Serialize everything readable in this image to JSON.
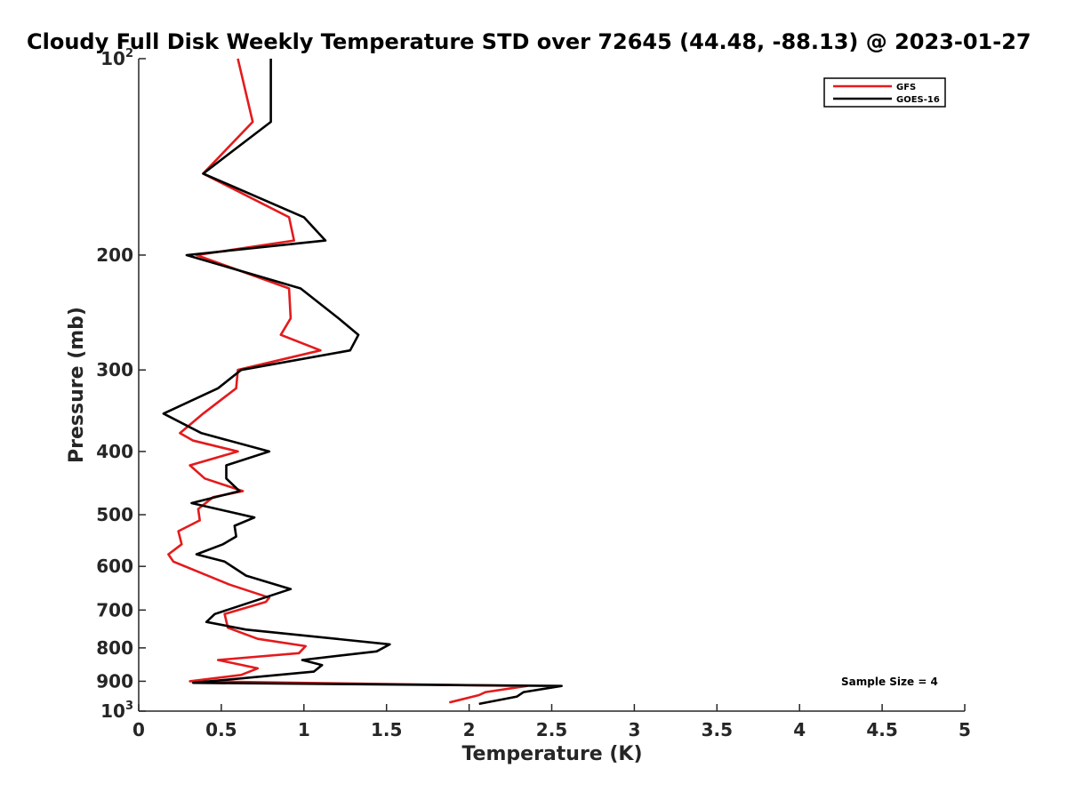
{
  "chart_data": {
    "type": "line",
    "title": "Cloudy Full Disk Weekly Temperature STD over 72645 (44.48, -88.13) @ 2023-01-27",
    "xlabel": "Temperature (K)",
    "ylabel": "Pressure (mb)",
    "xlim": [
      0,
      5
    ],
    "ylim": [
      100,
      1000
    ],
    "y_scale": "log",
    "y_reversed": true,
    "x_ticks": [
      "0",
      "0.5",
      "1",
      "1.5",
      "2",
      "2.5",
      "3",
      "3.5",
      "4",
      "4.5",
      "5"
    ],
    "y_ticks": [
      {
        "value": 100,
        "base": "10",
        "exp": "2"
      },
      {
        "value": 200,
        "label": "200"
      },
      {
        "value": 300,
        "label": "300"
      },
      {
        "value": 400,
        "label": "400"
      },
      {
        "value": 500,
        "label": "500"
      },
      {
        "value": 600,
        "label": "600"
      },
      {
        "value": 700,
        "label": "700"
      },
      {
        "value": 800,
        "label": "800"
      },
      {
        "value": 900,
        "label": "900"
      },
      {
        "value": 1000,
        "base": "10",
        "exp": "3"
      }
    ],
    "grid": false,
    "legend_position": "top-right",
    "annotation": "Sample Size = 4",
    "series": [
      {
        "name": "GFS",
        "color": "#e41a1c",
        "points": [
          [
            0.6,
            100
          ],
          [
            0.69,
            125
          ],
          [
            0.39,
            150
          ],
          [
            0.91,
            175
          ],
          [
            0.94,
            190
          ],
          [
            0.35,
            200
          ],
          [
            0.91,
            225
          ],
          [
            0.92,
            250
          ],
          [
            0.86,
            265
          ],
          [
            1.1,
            280
          ],
          [
            0.6,
            300
          ],
          [
            0.59,
            320
          ],
          [
            0.39,
            350
          ],
          [
            0.25,
            375
          ],
          [
            0.33,
            385
          ],
          [
            0.6,
            400
          ],
          [
            0.31,
            420
          ],
          [
            0.4,
            440
          ],
          [
            0.63,
            460
          ],
          [
            0.45,
            470
          ],
          [
            0.36,
            490
          ],
          [
            0.37,
            510
          ],
          [
            0.24,
            530
          ],
          [
            0.26,
            555
          ],
          [
            0.18,
            575
          ],
          [
            0.21,
            590
          ],
          [
            0.55,
            640
          ],
          [
            0.79,
            670
          ],
          [
            0.77,
            680
          ],
          [
            0.52,
            710
          ],
          [
            0.54,
            745
          ],
          [
            0.72,
            775
          ],
          [
            1.01,
            795
          ],
          [
            0.97,
            815
          ],
          [
            0.48,
            835
          ],
          [
            0.72,
            860
          ],
          [
            0.62,
            880
          ],
          [
            0.31,
            900
          ],
          [
            2.35,
            915
          ],
          [
            2.1,
            935
          ],
          [
            2.06,
            945
          ],
          [
            1.88,
            970
          ]
        ]
      },
      {
        "name": "GOES-16",
        "color": "#000000",
        "points": [
          [
            0.8,
            100
          ],
          [
            0.8,
            125
          ],
          [
            0.39,
            150
          ],
          [
            1.0,
            175
          ],
          [
            1.13,
            190
          ],
          [
            0.29,
            200
          ],
          [
            0.98,
            225
          ],
          [
            1.21,
            250
          ],
          [
            1.33,
            265
          ],
          [
            1.28,
            280
          ],
          [
            0.62,
            300
          ],
          [
            0.48,
            320
          ],
          [
            0.15,
            350
          ],
          [
            0.38,
            375
          ],
          [
            0.79,
            400
          ],
          [
            0.53,
            420
          ],
          [
            0.53,
            440
          ],
          [
            0.61,
            460
          ],
          [
            0.32,
            480
          ],
          [
            0.7,
            505
          ],
          [
            0.58,
            520
          ],
          [
            0.59,
            540
          ],
          [
            0.51,
            555
          ],
          [
            0.35,
            575
          ],
          [
            0.52,
            590
          ],
          [
            0.65,
            620
          ],
          [
            0.92,
            650
          ],
          [
            0.46,
            710
          ],
          [
            0.41,
            730
          ],
          [
            0.65,
            750
          ],
          [
            1.52,
            790
          ],
          [
            1.44,
            810
          ],
          [
            0.99,
            835
          ],
          [
            1.11,
            850
          ],
          [
            1.06,
            870
          ],
          [
            0.33,
            905
          ],
          [
            2.56,
            915
          ],
          [
            2.33,
            935
          ],
          [
            2.29,
            950
          ],
          [
            2.06,
            975
          ]
        ]
      }
    ]
  }
}
